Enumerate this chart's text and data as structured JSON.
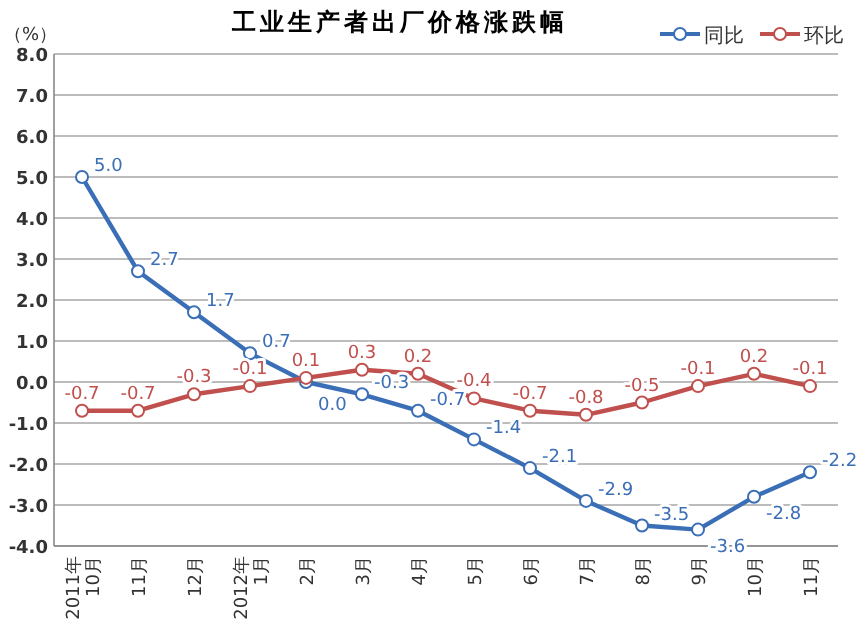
{
  "chart_data": {
    "type": "line",
    "title": "工业生产者出厂价格涨跌幅",
    "ylabel": "（%）",
    "categories": [
      "2011年\n10月",
      "11月",
      "12月",
      "2012年\n1月",
      "2月",
      "3月",
      "4月",
      "5月",
      "6月",
      "7月",
      "8月",
      "9月",
      "10月",
      "11月"
    ],
    "series": [
      {
        "name": "同比",
        "color": "#3a6fb7",
        "values": [
          5.0,
          2.7,
          1.7,
          0.7,
          0.0,
          -0.3,
          -0.7,
          -1.4,
          -2.1,
          -2.9,
          -3.5,
          -3.6,
          -2.8,
          -2.2
        ],
        "value_labels": [
          "5.0",
          "2.7",
          "1.7",
          "0.7",
          "0.0",
          "-0.3",
          "-0.7",
          "-1.4",
          "-2.1",
          "-2.9",
          "-3.5",
          "-3.6",
          "-2.8",
          "-2.2"
        ]
      },
      {
        "name": "环比",
        "color": "#c0504d",
        "values": [
          -0.7,
          -0.7,
          -0.3,
          -0.1,
          0.1,
          0.3,
          0.2,
          -0.4,
          -0.7,
          -0.8,
          -0.5,
          -0.1,
          0.2,
          -0.1
        ],
        "value_labels": [
          "-0.7",
          "-0.7",
          "-0.3",
          "-0.1",
          "0.1",
          "0.3",
          "0.2",
          "-0.4",
          "-0.7",
          "-0.8",
          "-0.5",
          "-0.1",
          "0.2",
          "-0.1"
        ]
      }
    ],
    "ylim": [
      -4.0,
      8.0
    ],
    "yticks": [
      {
        "value": -4,
        "label": "-4.0"
      },
      {
        "value": -3,
        "label": "-3.0"
      },
      {
        "value": -2,
        "label": "-2.0"
      },
      {
        "value": -1,
        "label": "-1.0"
      },
      {
        "value": 0,
        "label": "0.0"
      },
      {
        "value": 1,
        "label": "1.0"
      },
      {
        "value": 2,
        "label": "2.0"
      },
      {
        "value": 3,
        "label": "3.0"
      },
      {
        "value": 4,
        "label": "4.0"
      },
      {
        "value": 5,
        "label": "5.0"
      },
      {
        "value": 6,
        "label": "6.0"
      },
      {
        "value": 7,
        "label": "7.0"
      },
      {
        "value": 8,
        "label": "8.0"
      }
    ],
    "grid": "y",
    "legend": "top right",
    "marker": "circle",
    "line_style": "solid"
  }
}
